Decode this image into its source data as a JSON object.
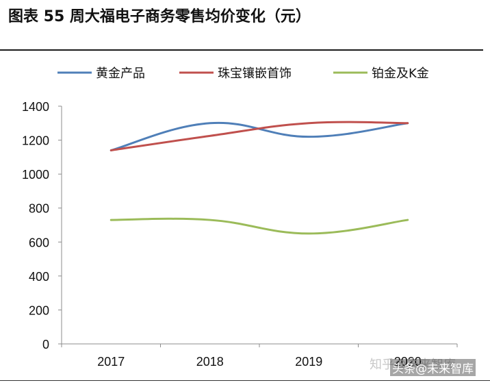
{
  "header": {
    "title": "图表 55 周大福电子商务零售均价变化（元）"
  },
  "watermark": {
    "brand": "知乎@未来智库",
    "label": "头条@未来智库"
  },
  "chart_data": {
    "type": "line",
    "title": "",
    "xlabel": "",
    "ylabel": "",
    "categories": [
      "2017",
      "2018",
      "2019",
      "2020"
    ],
    "ylim": [
      0,
      1400
    ],
    "yticks": [
      0,
      200,
      400,
      600,
      800,
      1000,
      1200,
      1400
    ],
    "grid": false,
    "legend_position": "top",
    "smooth": true,
    "series": [
      {
        "name": "黄金产品",
        "color": "#4f7fb8",
        "values": [
          1140,
          1300,
          1220,
          1300
        ]
      },
      {
        "name": "珠宝镶嵌首饰",
        "color": "#c0504d",
        "values": [
          1140,
          1225,
          1300,
          1300
        ]
      },
      {
        "name": "铂金及K金",
        "color": "#9bbb59",
        "values": [
          730,
          730,
          650,
          730
        ]
      }
    ]
  }
}
